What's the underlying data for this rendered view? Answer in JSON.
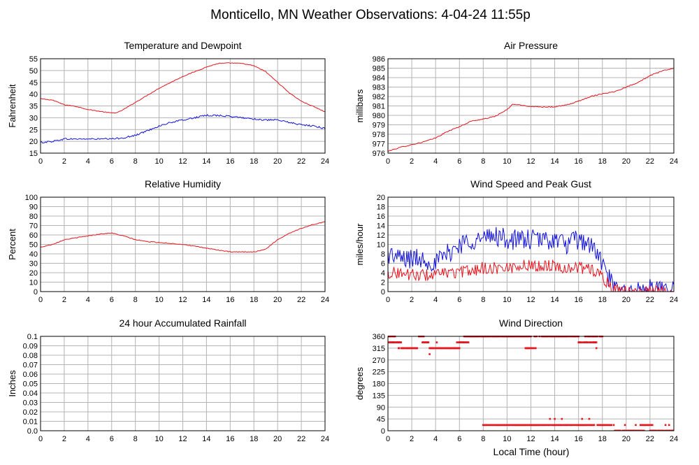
{
  "page_title": "Monticello, MN Weather Observations: 4-04-24 11:55p",
  "x_axis_label": "Local Time (hour)",
  "colors": {
    "red": "#e8141e",
    "blue": "#1212dc",
    "grid": "#b4b4b4",
    "frame": "#000000"
  },
  "chart_data": [
    {
      "id": "temp",
      "type": "line",
      "title": "Temperature and Dewpoint",
      "ylabel": "Fahrenheit",
      "xlim": [
        0,
        24
      ],
      "x_ticks": [
        "0",
        "2",
        "4",
        "6",
        "8",
        "10",
        "12",
        "14",
        "16",
        "18",
        "20",
        "22",
        "24"
      ],
      "ylim": [
        15,
        55
      ],
      "y_ticks": [
        "15",
        "20",
        "25",
        "30",
        "35",
        "40",
        "45",
        "50",
        "55"
      ],
      "grid": true,
      "series": [
        {
          "color": "red",
          "noise": 0.15,
          "x": [
            0,
            1,
            2,
            3,
            4,
            5,
            6,
            6.5,
            7,
            8,
            9,
            10,
            11,
            12,
            13,
            14,
            15,
            16,
            17,
            18,
            19,
            20,
            21,
            22,
            23,
            24
          ],
          "y": [
            38,
            37.5,
            35.5,
            34.8,
            33.5,
            32.7,
            32,
            32.2,
            33.5,
            36.5,
            39.5,
            42.5,
            45,
            47.5,
            49.5,
            51.5,
            53,
            53.2,
            53,
            52,
            49.5,
            45,
            40.5,
            37,
            34.8,
            32.5
          ]
        },
        {
          "color": "blue",
          "noise": 0.35,
          "x": [
            0,
            1,
            2,
            3,
            4,
            5,
            6,
            7,
            8,
            9,
            10,
            11,
            12,
            13,
            14,
            15,
            16,
            17,
            18,
            19,
            20,
            21,
            22,
            23,
            24
          ],
          "y": [
            19.5,
            20,
            21,
            21,
            21,
            21,
            21,
            21.5,
            22.5,
            24.5,
            26.5,
            28,
            29,
            30,
            31,
            31,
            30.5,
            30,
            29.5,
            29,
            29,
            28,
            27,
            26.5,
            25.5
          ]
        }
      ]
    },
    {
      "id": "pressure",
      "type": "line",
      "title": "Air Pressure",
      "ylabel": "millibars",
      "xlim": [
        0,
        24
      ],
      "x_ticks": [
        "0",
        "2",
        "4",
        "6",
        "8",
        "10",
        "12",
        "14",
        "16",
        "18",
        "20",
        "22",
        "24"
      ],
      "ylim": [
        976,
        986
      ],
      "y_ticks": [
        "976",
        "977",
        "978",
        "979",
        "980",
        "981",
        "982",
        "983",
        "984",
        "985",
        "986"
      ],
      "grid": true,
      "series": [
        {
          "color": "red",
          "noise": 0.05,
          "x": [
            0,
            1,
            2,
            3,
            4,
            5,
            6,
            7,
            8,
            9,
            10,
            10.5,
            11,
            12,
            13,
            14,
            15,
            16,
            17,
            18,
            19,
            20,
            21,
            22,
            23,
            24
          ],
          "y": [
            976.2,
            976.6,
            976.9,
            977.2,
            977.6,
            978.3,
            978.8,
            979.4,
            979.6,
            979.9,
            980.6,
            981.2,
            981.1,
            980.95,
            980.9,
            980.9,
            981.1,
            981.5,
            982,
            982.3,
            982.5,
            983,
            983.5,
            984.2,
            984.7,
            985
          ]
        }
      ]
    },
    {
      "id": "humidity",
      "type": "line",
      "title": "Relative Humidity",
      "ylabel": "Percent",
      "xlim": [
        0,
        24
      ],
      "x_ticks": [
        "0",
        "2",
        "4",
        "6",
        "8",
        "10",
        "12",
        "14",
        "16",
        "18",
        "20",
        "22",
        "24"
      ],
      "ylim": [
        0,
        100
      ],
      "y_ticks": [
        "0",
        "10",
        "20",
        "30",
        "40",
        "50",
        "60",
        "70",
        "80",
        "90",
        "100"
      ],
      "grid": true,
      "series": [
        {
          "color": "red",
          "noise": 0.4,
          "x": [
            0,
            1,
            2,
            3,
            4,
            5,
            6,
            7,
            8,
            9,
            10,
            11,
            12,
            13,
            14,
            15,
            16,
            17,
            18,
            19,
            20,
            21,
            22,
            23,
            24
          ],
          "y": [
            47,
            50,
            55,
            57,
            59,
            61,
            62,
            59,
            55,
            53,
            52,
            51,
            50,
            48,
            46,
            44,
            42,
            42,
            42,
            45,
            55,
            62,
            67,
            71,
            74
          ]
        }
      ]
    },
    {
      "id": "wind",
      "type": "line",
      "title": "Wind Speed and Peak Gust",
      "ylabel": "miles/hour",
      "xlim": [
        0,
        24
      ],
      "x_ticks": [
        "0",
        "2",
        "4",
        "6",
        "8",
        "10",
        "12",
        "14",
        "16",
        "18",
        "20",
        "22",
        "24"
      ],
      "ylim": [
        0,
        20
      ],
      "y_ticks": [
        "0",
        "2",
        "4",
        "6",
        "8",
        "10",
        "12",
        "14",
        "16",
        "18",
        "20"
      ],
      "grid": true,
      "series": [
        {
          "color": "blue",
          "noise": 2.2,
          "x": [
            0,
            1,
            2,
            3,
            4,
            5,
            6,
            7,
            8,
            9,
            10,
            11,
            12,
            13,
            14,
            15,
            16,
            17,
            18,
            18.5,
            19,
            19.5,
            20,
            21,
            22,
            23,
            24
          ],
          "y": [
            8,
            7,
            7,
            7,
            6,
            8,
            10,
            11,
            11,
            12,
            11,
            11,
            11,
            11,
            11,
            10,
            11,
            10,
            6,
            3,
            0.5,
            0,
            0,
            0,
            0.5,
            0,
            0
          ]
        },
        {
          "color": "red",
          "noise": 1.3,
          "x": [
            0,
            1,
            2,
            3,
            4,
            5,
            6,
            7,
            8,
            9,
            10,
            11,
            12,
            13,
            14,
            15,
            16,
            17,
            18,
            18.5,
            19,
            19.5,
            20,
            21,
            22,
            23,
            24
          ],
          "y": [
            4,
            4,
            3.5,
            3.5,
            3.5,
            4,
            4,
            4.5,
            5,
            5,
            5,
            5.5,
            5.5,
            5.5,
            5.5,
            5,
            5,
            5,
            3,
            1.5,
            0.3,
            0,
            0,
            0,
            0,
            0,
            0
          ]
        }
      ]
    },
    {
      "id": "rain",
      "type": "line",
      "title": "24 hour Accumulated Rainfall",
      "ylabel": "Inches",
      "xlim": [
        0,
        24
      ],
      "x_ticks": [
        "0",
        "2",
        "4",
        "6",
        "8",
        "10",
        "12",
        "14",
        "16",
        "18",
        "20",
        "22",
        "24"
      ],
      "ylim": [
        0,
        0.1
      ],
      "y_ticks": [
        "0.0",
        "0.01",
        "0.02",
        "0.03",
        "0.04",
        "0.05",
        "0.06",
        "0.07",
        "0.08",
        "0.09",
        "0.1"
      ],
      "grid": true,
      "series": [
        {
          "color": "red",
          "noise": 0,
          "x": [
            0,
            24
          ],
          "y": [
            0,
            0
          ]
        }
      ]
    },
    {
      "id": "winddir",
      "type": "scatter",
      "title": "Wind Direction",
      "ylabel": "degrees",
      "xlim": [
        0,
        24
      ],
      "x_ticks": [
        "0",
        "2",
        "4",
        "6",
        "8",
        "10",
        "12",
        "14",
        "16",
        "18",
        "20",
        "22",
        "24"
      ],
      "ylim": [
        0,
        360
      ],
      "y_ticks": [
        "0",
        "45",
        "90",
        "135",
        "180",
        "225",
        "270",
        "315",
        "360"
      ],
      "grid": true,
      "series": [
        {
          "color": "red",
          "segments": [
            {
              "x0": 0.0,
              "x1": 0.6,
              "y": 360
            },
            {
              "x0": 0.1,
              "x1": 1.1,
              "y": 337
            },
            {
              "x0": 0.9,
              "x1": 2.5,
              "y": 315
            },
            {
              "x0": 2.6,
              "x1": 3.0,
              "y": 360
            },
            {
              "x0": 2.9,
              "x1": 3.5,
              "y": 337
            },
            {
              "x0": 3.5,
              "x1": 6.0,
              "y": 315
            },
            {
              "x0": 5.8,
              "x1": 6.8,
              "y": 337
            },
            {
              "x0": 6.4,
              "x1": 8.2,
              "y": 360
            },
            {
              "x0": 8.0,
              "x1": 12.0,
              "y": 360
            },
            {
              "x0": 11.5,
              "x1": 12.4,
              "y": 315
            },
            {
              "x0": 12.3,
              "x1": 16.0,
              "y": 360
            },
            {
              "x0": 16.0,
              "x1": 17.5,
              "y": 337
            },
            {
              "x0": 16.5,
              "x1": 18.0,
              "y": 360
            },
            {
              "x0": 8.0,
              "x1": 11.0,
              "y": 22
            },
            {
              "x0": 11.0,
              "x1": 14.0,
              "y": 22
            },
            {
              "x0": 13.8,
              "x1": 18.0,
              "y": 22
            },
            {
              "x0": 18.0,
              "x1": 19.0,
              "y": 22
            },
            {
              "x0": 19.0,
              "x1": 21.5,
              "y": 0
            },
            {
              "x0": 21.2,
              "x1": 22.2,
              "y": 22
            },
            {
              "x0": 22.0,
              "x1": 24.0,
              "y": 0
            }
          ],
          "points": [
            [
              3.5,
              292
            ],
            [
              4.1,
              337
            ],
            [
              14.0,
              45
            ],
            [
              14.6,
              45
            ],
            [
              13.6,
              45
            ],
            [
              16.3,
              45
            ],
            [
              16.9,
              45
            ],
            [
              8.3,
              22
            ],
            [
              17.5,
              315
            ],
            [
              23.3,
              22
            ],
            [
              23.6,
              22
            ],
            [
              19.9,
              22
            ],
            [
              20.8,
              22
            ]
          ]
        }
      ]
    }
  ]
}
